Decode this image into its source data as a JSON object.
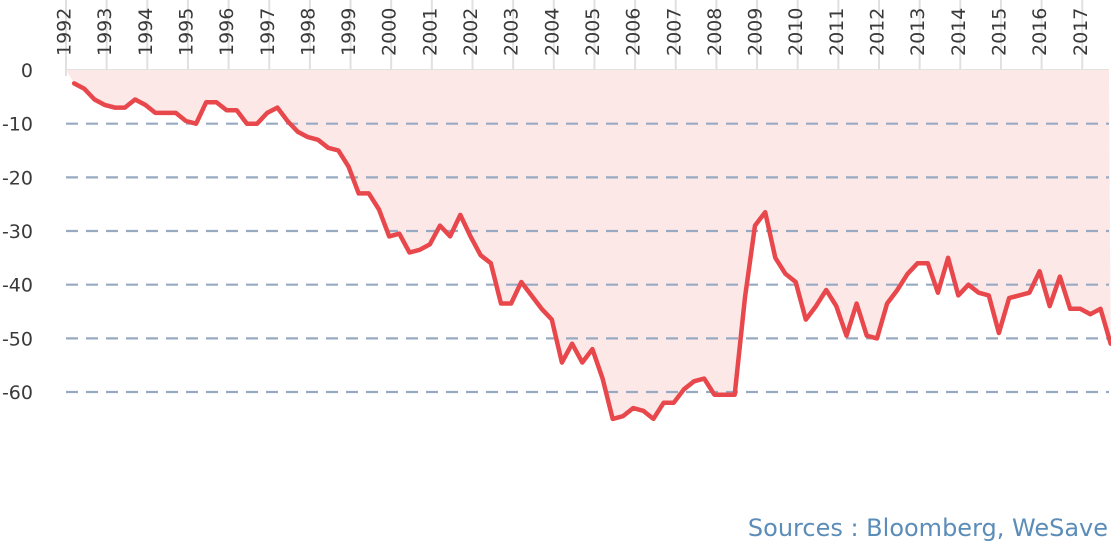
{
  "chart_data": {
    "type": "area",
    "x_start": 1992.2,
    "x_end": 2017.8,
    "x_step": 0.25,
    "xticks": [
      "1992",
      "1993",
      "1994",
      "1995",
      "1996",
      "1997",
      "1998",
      "1999",
      "2000",
      "2001",
      "2002",
      "2003",
      "2004",
      "2005",
      "2006",
      "2007",
      "2008",
      "2009",
      "2010",
      "2011",
      "2012",
      "2013",
      "2014",
      "2015",
      "2016",
      "2017"
    ],
    "yticks": [
      "0",
      "-10",
      "-20",
      "-30",
      "-40",
      "-50",
      "-60"
    ],
    "ylim": [
      -70,
      0
    ],
    "grid": "horizontal-dashed",
    "values": [
      -2.5,
      -3.5,
      -5.5,
      -6.5,
      -7,
      -7,
      -5.5,
      -6.5,
      -8,
      -8,
      -8,
      -9.5,
      -10,
      -6,
      -6,
      -7.5,
      -7.5,
      -10,
      -10,
      -8,
      -7,
      -9.5,
      -11.5,
      -12.5,
      -13,
      -14.5,
      -15,
      -18,
      -23,
      -23,
      -26,
      -31,
      -30.5,
      -34,
      -33.5,
      -32.5,
      -29,
      -31,
      -27,
      -31,
      -34.5,
      -36,
      -43.5,
      -43.5,
      -39.5,
      -42,
      -44.5,
      -46.5,
      -54.5,
      -51,
      -54.5,
      -52,
      -57.5,
      -65,
      -64.5,
      -63,
      -63.5,
      -65,
      -62,
      -62,
      -59.5,
      -58,
      -57.5,
      -60.5,
      -60.5,
      -60.5,
      -42.5,
      -29,
      -26.5,
      -35,
      -38,
      -39.5,
      -46.5,
      -44,
      -41,
      -44,
      -49.5,
      -43.5,
      -49.5,
      -50,
      -43.5,
      -41,
      -38,
      -36,
      -36,
      -41.5,
      -35,
      -42,
      -40,
      -41.5,
      -42,
      -49,
      -42.5,
      -42,
      -41.5,
      -37.5,
      -44,
      -38.5,
      -44.5,
      -44.5,
      -45.5,
      -44.5,
      -51
    ],
    "line_color": "#e8474c",
    "fill_color": "#fde8e8",
    "grid_color": "#98a9c2"
  },
  "source_text": "Sources : Bloomberg, WeSave"
}
